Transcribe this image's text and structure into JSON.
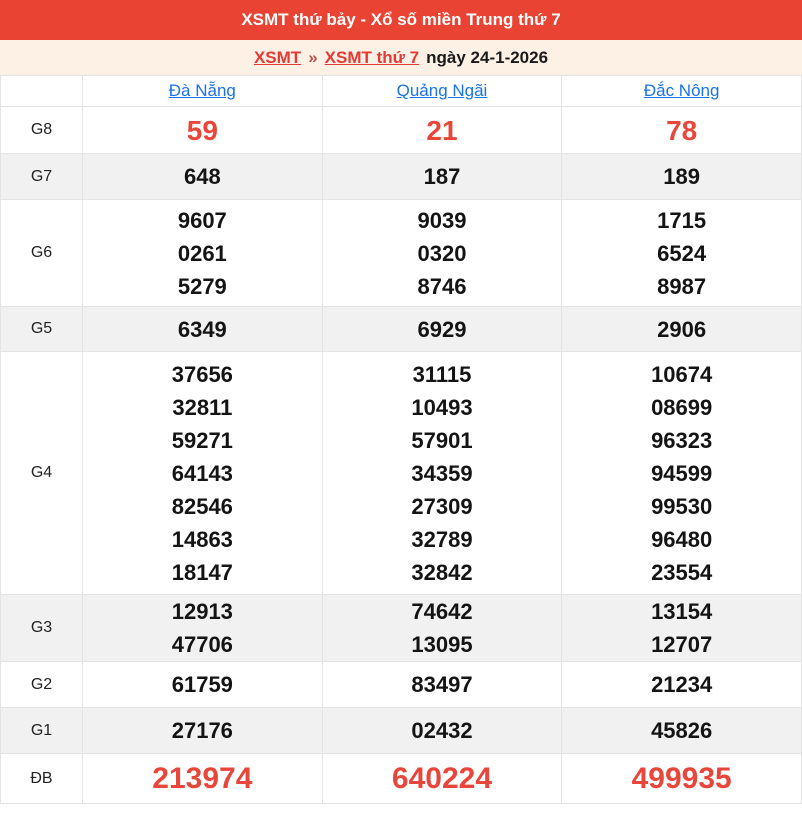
{
  "header": {
    "title": "XSMT thứ bảy - Xổ số miền Trung thứ 7"
  },
  "breadcrumb": {
    "link_xsmt": "XSMT",
    "separator": "»",
    "link_day": "XSMT thứ 7",
    "date_text": "ngày 24-1-2026"
  },
  "table": {
    "provinces": [
      "Đà Nẵng",
      "Quảng Ngãi",
      "Đắc Nông"
    ],
    "rows": [
      {
        "key": "g8",
        "label": "G8",
        "style": "red-large",
        "cells": [
          [
            "59"
          ],
          [
            "21"
          ],
          [
            "78"
          ]
        ]
      },
      {
        "key": "g7",
        "label": "G7",
        "style": "",
        "cells": [
          [
            "648"
          ],
          [
            "187"
          ],
          [
            "189"
          ]
        ]
      },
      {
        "key": "g6",
        "label": "G6",
        "style": "",
        "cells": [
          [
            "9607",
            "0261",
            "5279"
          ],
          [
            "9039",
            "0320",
            "8746"
          ],
          [
            "1715",
            "6524",
            "8987"
          ]
        ]
      },
      {
        "key": "g5",
        "label": "G5",
        "style": "",
        "cells": [
          [
            "6349"
          ],
          [
            "6929"
          ],
          [
            "2906"
          ]
        ]
      },
      {
        "key": "g4",
        "label": "G4",
        "style": "",
        "cells": [
          [
            "37656",
            "32811",
            "59271",
            "64143",
            "82546",
            "14863",
            "18147"
          ],
          [
            "31115",
            "10493",
            "57901",
            "34359",
            "27309",
            "32789",
            "32842"
          ],
          [
            "10674",
            "08699",
            "96323",
            "94599",
            "99530",
            "96480",
            "23554"
          ]
        ]
      },
      {
        "key": "g3",
        "label": "G3",
        "style": "",
        "cells": [
          [
            "12913",
            "47706"
          ],
          [
            "74642",
            "13095"
          ],
          [
            "13154",
            "12707"
          ]
        ]
      },
      {
        "key": "g2",
        "label": "G2",
        "style": "",
        "cells": [
          [
            "61759"
          ],
          [
            "83497"
          ],
          [
            "21234"
          ]
        ]
      },
      {
        "key": "g1",
        "label": "G1",
        "style": "",
        "cells": [
          [
            "27176"
          ],
          [
            "02432"
          ],
          [
            "45826"
          ]
        ]
      },
      {
        "key": "db",
        "label": "ĐB",
        "style": "red-xlarge",
        "cells": [
          [
            "213974"
          ],
          [
            "640224"
          ],
          [
            "499935"
          ]
        ]
      }
    ]
  },
  "colors": {
    "header_bar_red": "#e94334",
    "breadcrumb_bg_cream": "#fdf1e6",
    "link_red": "#e53935",
    "link_blue": "#1a73e8",
    "highlight_number_red": "#e8453b",
    "number_black": "#141414",
    "row_alt_gray": "#f1f1f1",
    "border_gray": "#e3e3e3"
  }
}
